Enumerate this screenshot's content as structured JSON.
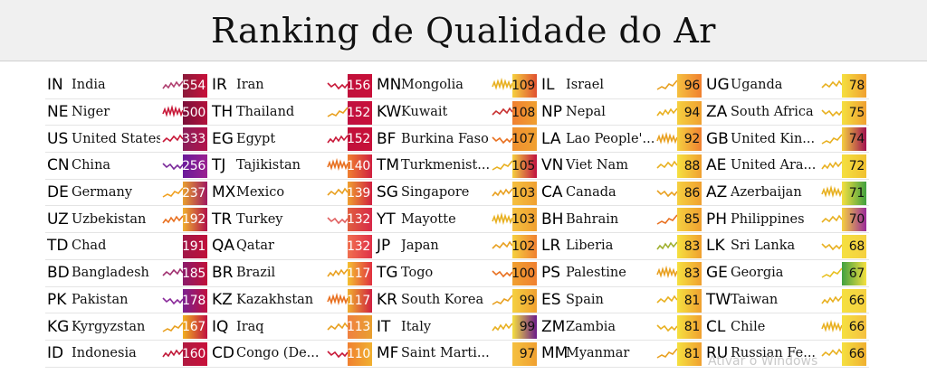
{
  "header": {
    "title": "Ranking de Qualidade do Ar"
  },
  "columns": [
    [
      {
        "code": "IN",
        "name": "India",
        "aqi": "554",
        "spark": "#b04070",
        "bar": "linear-gradient(to right,#8a1a3a,#c8103a)"
      },
      {
        "code": "NE",
        "name": "Niger",
        "aqi": "500",
        "spark": "#c81838",
        "bar": "linear-gradient(to right,#7a0f3a,#b2123c)"
      },
      {
        "code": "US",
        "name": "United States",
        "aqi": "333",
        "spark": "#c81838",
        "bar": "linear-gradient(to right,#8a1f5a,#b2124a)"
      },
      {
        "code": "CN",
        "name": "China",
        "aqi": "256",
        "spark": "#7a2a9a",
        "bar": "linear-gradient(to right,#6a1a9a,#9a2090)"
      },
      {
        "code": "DE",
        "name": "Germany",
        "aqi": "237",
        "spark": "#f0a020",
        "bar": "linear-gradient(to right,#e8a030,#a01860)"
      },
      {
        "code": "UZ",
        "name": "Uzbekistan",
        "aqi": "192",
        "spark": "#e87020",
        "bar": "linear-gradient(to right,#f0b030,#b0104a)"
      },
      {
        "code": "TD",
        "name": "Chad",
        "aqi": "191",
        "spark": "#ffffff",
        "bar": "linear-gradient(to right,#a01848,#c0103a)"
      },
      {
        "code": "BD",
        "name": "Bangladesh",
        "aqi": "185",
        "spark": "#a03070",
        "bar": "linear-gradient(to right,#8a1a6a,#c0103a)"
      },
      {
        "code": "PK",
        "name": "Pakistan",
        "aqi": "178",
        "spark": "#8a2a9a",
        "bar": "linear-gradient(to right,#7a2090,#c01040)"
      },
      {
        "code": "KG",
        "name": "Kyrgyzstan",
        "aqi": "167",
        "spark": "#e8a020",
        "bar": "linear-gradient(to right,#f0b020,#c01040)"
      },
      {
        "code": "ID",
        "name": "Indonesia",
        "aqi": "160",
        "spark": "#c01838",
        "bar": "linear-gradient(to right,#b01a40,#c8103a)"
      }
    ],
    [
      {
        "code": "IR",
        "name": "Iran",
        "aqi": "156",
        "spark": "#c81838",
        "bar": "linear-gradient(to right,#c0103a,#c8103a)"
      },
      {
        "code": "TH",
        "name": "Thailand",
        "aqi": "152",
        "spark": "#e8a020",
        "bar": "linear-gradient(to right,#c01040,#c8103a)"
      },
      {
        "code": "EG",
        "name": "Egypt",
        "aqi": "152",
        "spark": "#c81838",
        "bar": "linear-gradient(to right,#c0103a,#c8103a)"
      },
      {
        "code": "TJ",
        "name": "Tajikistan",
        "aqi": "140",
        "spark": "#e87020",
        "bar": "linear-gradient(to right,#f08030,#d02040)"
      },
      {
        "code": "MX",
        "name": "Mexico",
        "aqi": "139",
        "spark": "#e8a020",
        "bar": "linear-gradient(to right,#f0a030,#d02040)"
      },
      {
        "code": "TR",
        "name": "Turkey",
        "aqi": "132",
        "spark": "#e06060",
        "bar": "linear-gradient(to right,#e06040,#d82848)"
      },
      {
        "code": "QA",
        "name": "Qatar",
        "aqi": "132",
        "spark": "#ffffff",
        "bar": "linear-gradient(to right,#f07050,#e03048)"
      },
      {
        "code": "BR",
        "name": "Brazil",
        "aqi": "117",
        "spark": "#e8a020",
        "bar": "linear-gradient(to right,#f5c030,#e03040)"
      },
      {
        "code": "KZ",
        "name": "Kazakhstan",
        "aqi": "117",
        "spark": "#e87020",
        "bar": "linear-gradient(to right,#f0b030,#d02040)"
      },
      {
        "code": "IQ",
        "name": "Iraq",
        "aqi": "113",
        "spark": "#e8a020",
        "bar": "linear-gradient(to right,#f08040,#e8a030)"
      },
      {
        "code": "CD",
        "name": "Congo (De...",
        "aqi": "110",
        "spark": "#c81838",
        "bar": "linear-gradient(to right,#f08030,#f0b030)"
      }
    ],
    [
      {
        "code": "MN",
        "name": "Mongolia",
        "aqi": "109",
        "spark": "#e8b020",
        "bar": "linear-gradient(to right,#f5d040,#e05030)"
      },
      {
        "code": "KW",
        "name": "Kuwait",
        "aqi": "108",
        "spark": "#c83030",
        "bar": "linear-gradient(to right,#f08030,#f0a030)"
      },
      {
        "code": "BF",
        "name": "Burkina Faso",
        "aqi": "107",
        "spark": "#e87020",
        "bar": "linear-gradient(to right,#f09030,#f0a030)"
      },
      {
        "code": "TM",
        "name": "Turkmenist...",
        "aqi": "105",
        "spark": "#e8b020",
        "bar": "linear-gradient(to right,#f5d040,#c01040)"
      },
      {
        "code": "SG",
        "name": "Singapore",
        "aqi": "103",
        "spark": "#e8a020",
        "bar": "linear-gradient(to right,#f5c040,#f0a030)"
      },
      {
        "code": "YT",
        "name": "Mayotte",
        "aqi": "103",
        "spark": "#e8b020",
        "bar": "linear-gradient(to right,#f5c040,#f0a030)"
      },
      {
        "code": "JP",
        "name": "Japan",
        "aqi": "102",
        "spark": "#e8a020",
        "bar": "linear-gradient(to right,#f5d040,#f08030)"
      },
      {
        "code": "TG",
        "name": "Togo",
        "aqi": "100",
        "spark": "#e87020",
        "bar": "linear-gradient(to right,#f0a030,#f08030)"
      },
      {
        "code": "KR",
        "name": "South Korea",
        "aqi": "99",
        "spark": "#e8a020",
        "bar": "linear-gradient(to right,#f5d040,#f0a030)"
      },
      {
        "code": "IT",
        "name": "Italy",
        "aqi": "99",
        "spark": "#e8b020",
        "bar": "linear-gradient(to right,#f5e040,#6a1a8a)"
      },
      {
        "code": "MF",
        "name": "Saint Marti...",
        "aqi": "97",
        "spark": "#ffffff",
        "bar": "linear-gradient(to right,#f5c040,#f0a030)"
      }
    ],
    [
      {
        "code": "IL",
        "name": "Israel",
        "aqi": "96",
        "spark": "#e8a020",
        "bar": "linear-gradient(to right,#f5c040,#f08030)"
      },
      {
        "code": "NP",
        "name": "Nepal",
        "aqi": "94",
        "spark": "#e8b020",
        "bar": "linear-gradient(to right,#f5d040,#f0a030)"
      },
      {
        "code": "LA",
        "name": "Lao People'...",
        "aqi": "92",
        "spark": "#e8a020",
        "bar": "linear-gradient(to right,#f5d040,#f08030)"
      },
      {
        "code": "VN",
        "name": "Viet Nam",
        "aqi": "88",
        "spark": "#e8b020",
        "bar": "linear-gradient(to right,#f5e040,#f0a030)"
      },
      {
        "code": "CA",
        "name": "Canada",
        "aqi": "86",
        "spark": "#e8a020",
        "bar": "linear-gradient(to right,#f5d040,#f0a030)"
      },
      {
        "code": "BH",
        "name": "Bahrain",
        "aqi": "85",
        "spark": "#e87020",
        "bar": "linear-gradient(to right,#f5d040,#f0a030)"
      },
      {
        "code": "LR",
        "name": "Liberia",
        "aqi": "83",
        "spark": "#a0b030",
        "bar": "linear-gradient(to right,#f5e040,#f0a030)"
      },
      {
        "code": "PS",
        "name": "Palestine",
        "aqi": "83",
        "spark": "#e8a020",
        "bar": "linear-gradient(to right,#f5e040,#f0a030)"
      },
      {
        "code": "ES",
        "name": "Spain",
        "aqi": "81",
        "spark": "#e8b020",
        "bar": "linear-gradient(to right,#f5e040,#f0a030)"
      },
      {
        "code": "ZM",
        "name": "Zambia",
        "aqi": "81",
        "spark": "#e8b020",
        "bar": "linear-gradient(to right,#f5e040,#f0a030)"
      },
      {
        "code": "MM",
        "name": "Myanmar",
        "aqi": "81",
        "spark": "#e8a020",
        "bar": "linear-gradient(to right,#f5e040,#f0a030)"
      }
    ],
    [
      {
        "code": "UG",
        "name": "Uganda",
        "aqi": "78",
        "spark": "#e8b020",
        "bar": "linear-gradient(to right,#f5e040,#f0a030)"
      },
      {
        "code": "ZA",
        "name": "South Africa",
        "aqi": "75",
        "spark": "#e8b020",
        "bar": "linear-gradient(to right,#f5e040,#f0a030)"
      },
      {
        "code": "GB",
        "name": "United Kin...",
        "aqi": "74",
        "spark": "#e8b020",
        "bar": "linear-gradient(to right,#f5d040,#a01050)"
      },
      {
        "code": "AE",
        "name": "United Ara...",
        "aqi": "72",
        "spark": "#e8b020",
        "bar": "linear-gradient(to right,#f5e040,#f0c030)"
      },
      {
        "code": "AZ",
        "name": "Azerbaijan",
        "aqi": "71",
        "spark": "#e8b020",
        "bar": "linear-gradient(to right,#f5e040,#40a040)"
      },
      {
        "code": "PH",
        "name": "Philippines",
        "aqi": "70",
        "spark": "#e8b020",
        "bar": "linear-gradient(to right,#f5d040,#9a2a9a)"
      },
      {
        "code": "LK",
        "name": "Sri Lanka",
        "aqi": "68",
        "spark": "#e8b020",
        "bar": "linear-gradient(to right,#f5e040,#f5d040)"
      },
      {
        "code": "GE",
        "name": "Georgia",
        "aqi": "67",
        "spark": "#e8c020",
        "bar": "linear-gradient(to right,#40a040,#f5e040)"
      },
      {
        "code": "TW",
        "name": "Taiwan",
        "aqi": "66",
        "spark": "#e8b020",
        "bar": "linear-gradient(to right,#f5e040,#f5d040)"
      },
      {
        "code": "CL",
        "name": "Chile",
        "aqi": "66",
        "spark": "#e8b020",
        "bar": "linear-gradient(to right,#f5e040,#f5c040)"
      },
      {
        "code": "RU",
        "name": "Russian Fe...",
        "aqi": "66",
        "spark": "#e8b020",
        "bar": "linear-gradient(to right,#f5e040,#f0b030)"
      }
    ]
  ],
  "watermark": "Ativar o Windows"
}
